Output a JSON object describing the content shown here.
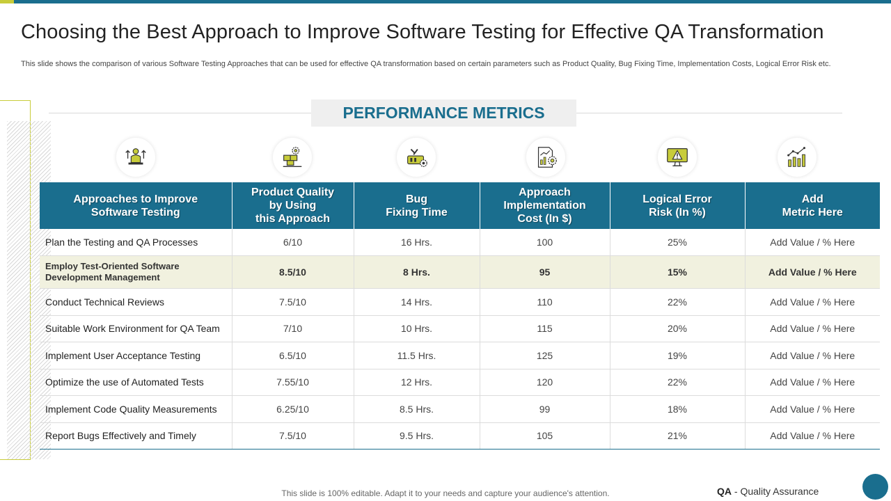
{
  "slide": {
    "title": "Choosing the Best Approach to Improve Software Testing for Effective QA Transformation",
    "subtitle": "This slide shows the comparison of various Software Testing Approaches that can be used for effective QA transformation based on certain parameters such as Product Quality, Bug Fixing Time, Implementation Costs, Logical Error Risk etc.",
    "section_label": "PERFORMANCE METRICS"
  },
  "icons": [
    "person-growth-icon",
    "boxes-gear-icon",
    "tools-gear-icon",
    "document-chart-gear-icon",
    "monitor-warning-icon",
    "bar-growth-chart-icon"
  ],
  "colors": {
    "primary": "#1a6e8e",
    "accent": "#c8cc3a",
    "highlight_row": "#f1f1df"
  },
  "table": {
    "headers": [
      [
        "Approaches to Improve",
        "Software Testing"
      ],
      [
        "Product Quality",
        "by Using",
        "this Approach"
      ],
      [
        "Bug",
        "Fixing Time"
      ],
      [
        "Approach",
        "Implementation",
        "Cost (In $)"
      ],
      [
        "Logical Error",
        "Risk (In %)"
      ],
      [
        "Add",
        "Metric Here"
      ]
    ],
    "rows": [
      {
        "approach": "Plan the Testing and QA Processes",
        "quality": "6/10",
        "bug_time": "16 Hrs.",
        "cost": "100",
        "risk": "25%",
        "extra": "Add Value / % Here"
      },
      {
        "approach": "Employ Test-Oriented Software Development Management",
        "quality": "8.5/10",
        "bug_time": "8 Hrs.",
        "cost": "95",
        "risk": "15%",
        "extra": "Add Value / % Here"
      },
      {
        "approach": "Conduct Technical Reviews",
        "quality": "7.5/10",
        "bug_time": "14 Hrs.",
        "cost": "110",
        "risk": "22%",
        "extra": "Add Value / % Here"
      },
      {
        "approach": "Suitable Work Environment for QA Team",
        "quality": "7/10",
        "bug_time": "10 Hrs.",
        "cost": "115",
        "risk": "20%",
        "extra": "Add Value / % Here"
      },
      {
        "approach": "Implement User Acceptance Testing",
        "quality": "6.5/10",
        "bug_time": "11.5 Hrs.",
        "cost": "125",
        "risk": "19%",
        "extra": "Add Value / % Here"
      },
      {
        "approach": "Optimize the use of Automated Tests",
        "quality": "7.55/10",
        "bug_time": "12 Hrs.",
        "cost": "120",
        "risk": "22%",
        "extra": "Add Value / % Here"
      },
      {
        "approach": "Implement Code Quality Measurements",
        "quality": "6.25/10",
        "bug_time": "8.5 Hrs.",
        "cost": "99",
        "risk": "18%",
        "extra": "Add Value / % Here"
      },
      {
        "approach": "Report Bugs Effectively and Timely",
        "quality": "7.5/10",
        "bug_time": "9.5 Hrs.",
        "cost": "105",
        "risk": "21%",
        "extra": "Add Value / % Here"
      }
    ]
  },
  "footer": {
    "note": "This slide is 100% editable. Adapt it to your needs and capture your audience's attention.",
    "abbr": "QA",
    "abbr_desc": "- Quality Assurance"
  }
}
